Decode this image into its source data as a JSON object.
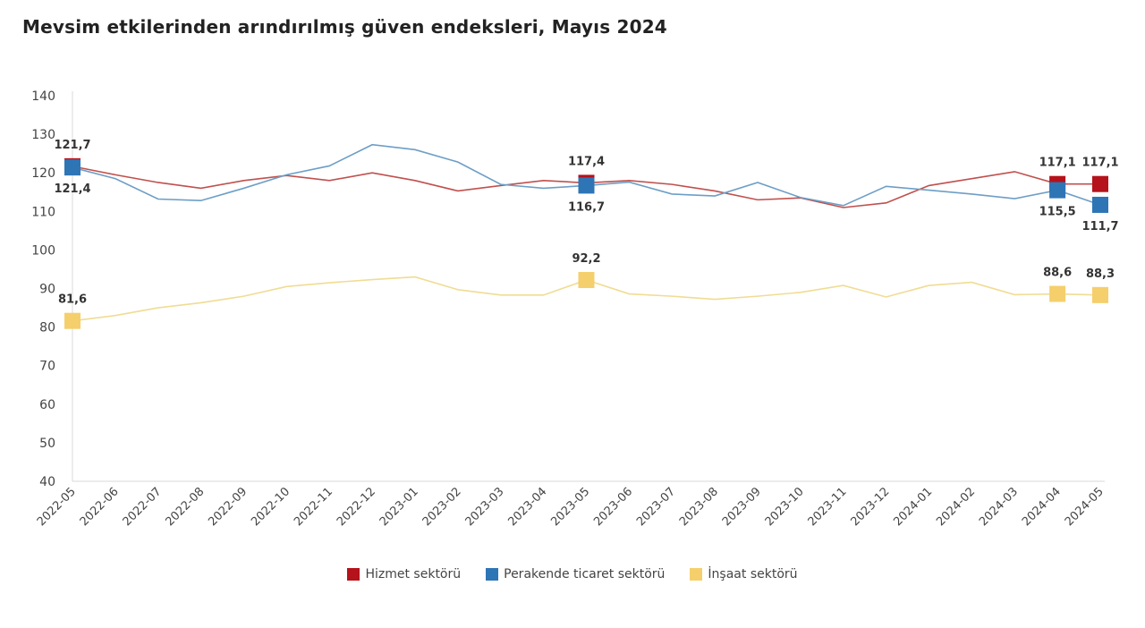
{
  "chart_data": {
    "type": "line",
    "title": "Mevsim etkilerinden arındırılmış güven endeksleri, Mayıs 2024",
    "xlabel": "",
    "ylabel": "",
    "ylim": [
      40,
      140
    ],
    "yticks": [
      40,
      50,
      60,
      70,
      80,
      90,
      100,
      110,
      120,
      130,
      140
    ],
    "grid": false,
    "legend": "bottom",
    "categories": [
      "2022-05",
      "2022-06",
      "2022-07",
      "2022-08",
      "2022-09",
      "2022-10",
      "2022-11",
      "2022-12",
      "2023-01",
      "2023-02",
      "2023-03",
      "2023-04",
      "2023-05",
      "2023-06",
      "2023-07",
      "2023-08",
      "2023-09",
      "2023-10",
      "2023-11",
      "2023-12",
      "2024-01",
      "2024-02",
      "2024-03",
      "2024-04",
      "2024-05"
    ],
    "series": [
      {
        "name": "Hizmet sektörü",
        "color": "#b5121b",
        "line_color": "#c0504d",
        "label_pos": "above",
        "values": [
          121.7,
          119.5,
          117.5,
          116.0,
          118.0,
          119.3,
          118.0,
          120.0,
          118.0,
          115.3,
          116.7,
          118.0,
          117.4,
          118.0,
          117.0,
          115.3,
          113.0,
          113.5,
          111.0,
          112.2,
          116.7,
          118.5,
          120.3,
          117.1,
          117.1
        ],
        "labels": {
          "0": "121,7",
          "12": "117,4",
          "23": "117,1",
          "24": "117,1"
        }
      },
      {
        "name": "Perakende ticaret sektörü",
        "color": "#2e75b6",
        "line_color": "#6d9ec6",
        "label_pos": "below",
        "values": [
          121.4,
          118.5,
          113.2,
          112.8,
          116.0,
          119.5,
          121.8,
          127.3,
          126.0,
          122.8,
          117.0,
          116.0,
          116.7,
          117.6,
          114.5,
          114.0,
          117.5,
          113.6,
          111.5,
          116.5,
          115.5,
          114.5,
          113.3,
          115.5,
          111.7
        ],
        "labels": {
          "0": "121,4",
          "12": "116,7",
          "23": "115,5",
          "24": "111,7"
        }
      },
      {
        "name": "İnşaat sektörü",
        "color": "#f5cf6b",
        "line_color": "#f0dc93",
        "label_pos": "above",
        "values": [
          81.6,
          83.0,
          85.0,
          86.3,
          88.0,
          90.5,
          91.5,
          92.3,
          93.0,
          89.7,
          88.3,
          88.3,
          92.2,
          88.6,
          88.0,
          87.2,
          88.0,
          89.0,
          90.8,
          87.8,
          90.8,
          91.6,
          88.4,
          88.6,
          88.3
        ],
        "labels": {
          "0": "81,6",
          "12": "92,2",
          "23": "88,6",
          "24": "88,3"
        }
      }
    ]
  }
}
